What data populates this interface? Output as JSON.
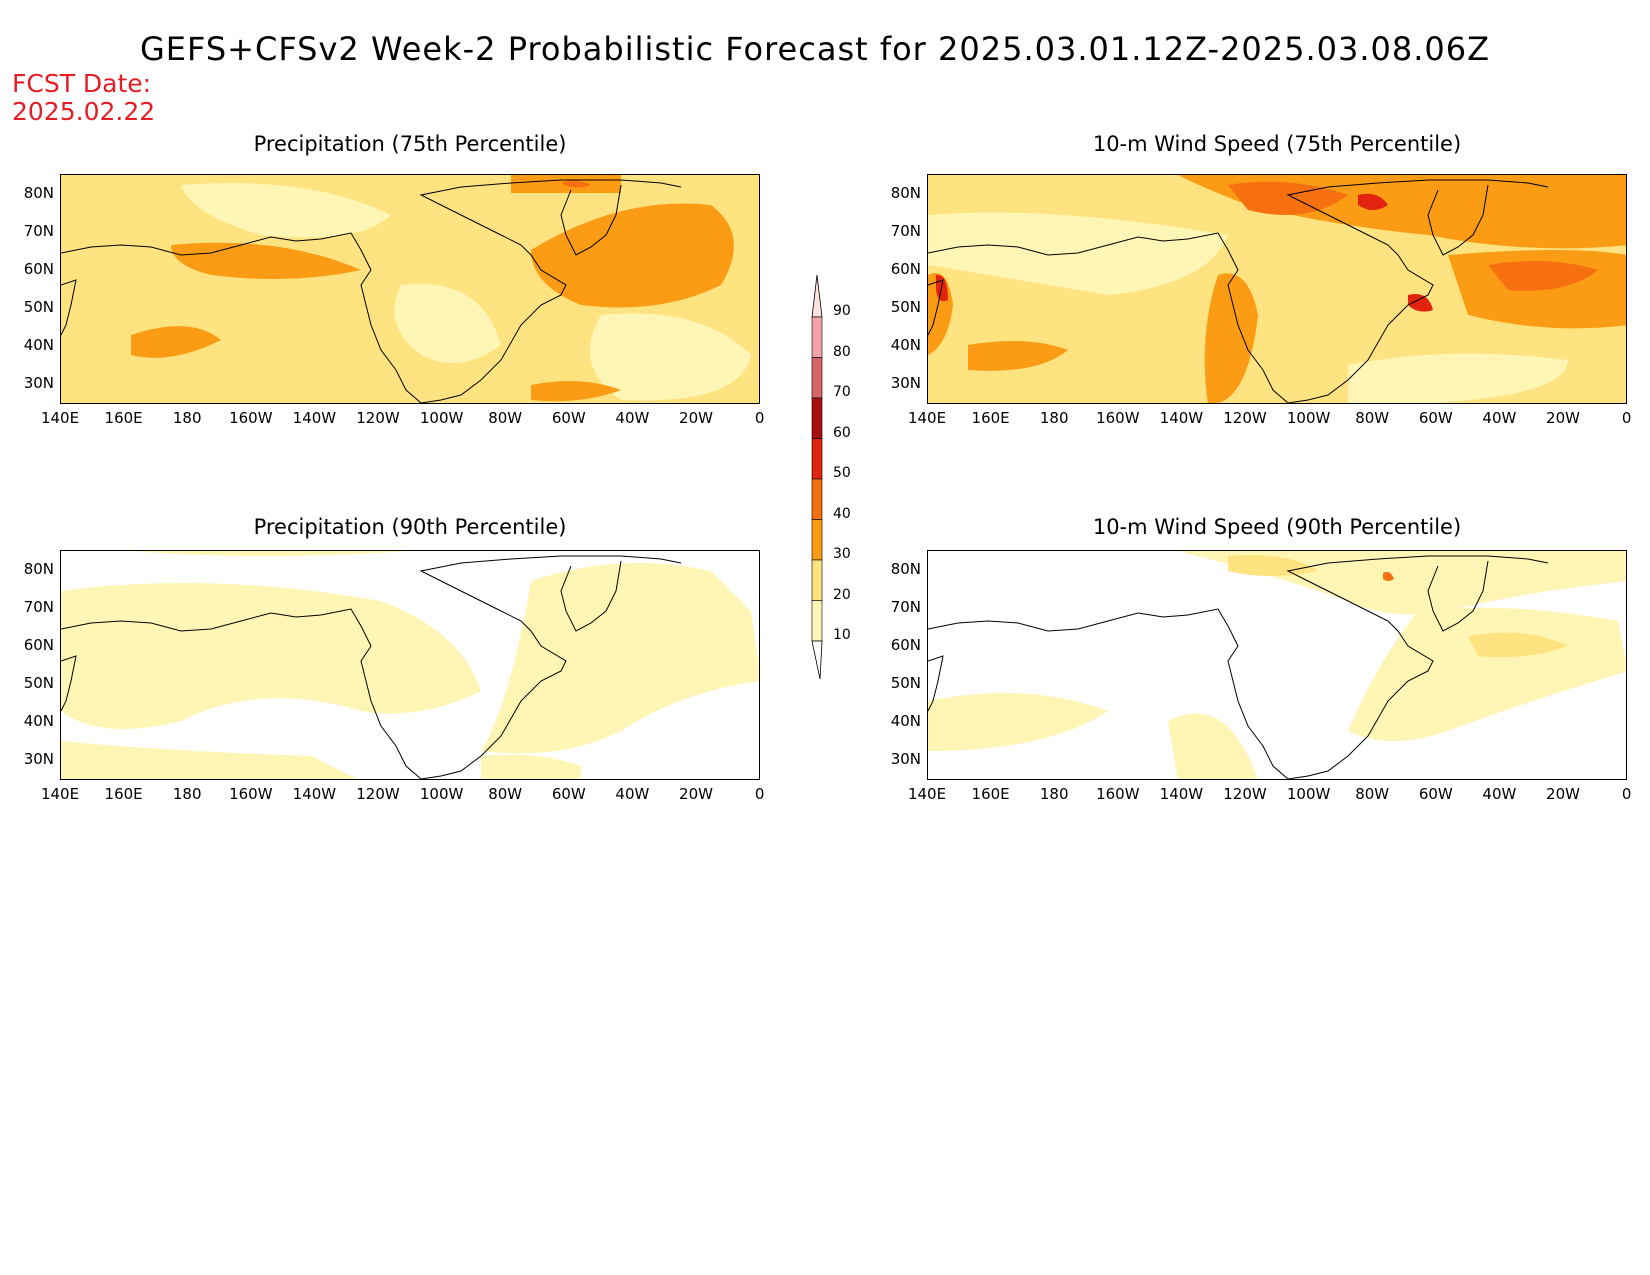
{
  "title": "GEFS+CFSv2 Week-2 Probabilistic Forecast for 2025.03.01.12Z-2025.03.08.06Z",
  "fcst_label": "FCST Date:",
  "fcst_date": "2025.02.22",
  "panels": [
    {
      "title": "Precipitation (75th Percentile)"
    },
    {
      "title": "10-m Wind Speed (75th Percentile)"
    },
    {
      "title": "Precipitation (90th Percentile)"
    },
    {
      "title": "10-m Wind Speed (90th Percentile)"
    }
  ],
  "lat_labels": [
    "80N",
    "70N",
    "60N",
    "50N",
    "40N",
    "30N"
  ],
  "lon_labels": [
    "140E",
    "160E",
    "180",
    "160W",
    "140W",
    "120W",
    "100W",
    "80W",
    "60W",
    "40W",
    "20W",
    "0"
  ],
  "colorbar": {
    "labels": [
      "90",
      "80",
      "70",
      "60",
      "50",
      "40",
      "30",
      "20",
      "10"
    ],
    "colors": [
      "#fde1e1",
      "#f2a3a8",
      "#d9656a",
      "#a90f0f",
      "#e2230e",
      "#f7700f",
      "#fb9c14",
      "#ffe380",
      "#fff5b4"
    ]
  }
}
